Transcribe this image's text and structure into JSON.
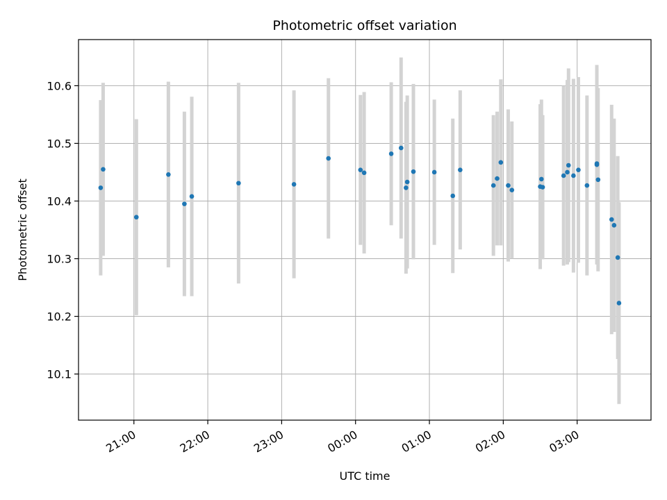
{
  "chart_data": {
    "type": "scatter",
    "title": "Photometric offset variation",
    "xlabel": "UTC time",
    "ylabel": "Photometric offset",
    "x_unit": "UTC",
    "xlim": [
      "20:15",
      "04:00"
    ],
    "ylim": [
      10.02,
      10.68
    ],
    "x_ticks": [
      "21:00",
      "22:00",
      "23:00",
      "00:00",
      "01:00",
      "02:00",
      "03:00"
    ],
    "y_ticks": [
      "10.1",
      "10.2",
      "10.3",
      "10.4",
      "10.5",
      "10.6"
    ],
    "grid": true,
    "colors": {
      "point": "#1f77b4",
      "errorbar": "#d3d3d3",
      "grid": "#b0b0b0"
    },
    "points": [
      {
        "x": "20:33",
        "y": 10.423,
        "yerr": 0.152
      },
      {
        "x": "20:35",
        "y": 10.455,
        "yerr": 0.15
      },
      {
        "x": "21:02",
        "y": 10.372,
        "yerr": 0.17
      },
      {
        "x": "21:28",
        "y": 10.446,
        "yerr": 0.161
      },
      {
        "x": "21:41",
        "y": 10.395,
        "yerr": 0.16
      },
      {
        "x": "21:47",
        "y": 10.408,
        "yerr": 0.173
      },
      {
        "x": "22:25",
        "y": 10.431,
        "yerr": 0.174
      },
      {
        "x": "23:10",
        "y": 10.429,
        "yerr": 0.163
      },
      {
        "x": "23:38",
        "y": 10.474,
        "yerr": 0.139
      },
      {
        "x": "00:04",
        "y": 10.454,
        "yerr": 0.13
      },
      {
        "x": "00:07",
        "y": 10.449,
        "yerr": 0.14
      },
      {
        "x": "00:29",
        "y": 10.482,
        "yerr": 0.124
      },
      {
        "x": "00:37",
        "y": 10.492,
        "yerr": 0.157
      },
      {
        "x": "00:41",
        "y": 10.423,
        "yerr": 0.149
      },
      {
        "x": "00:42",
        "y": 10.433,
        "yerr": 0.15
      },
      {
        "x": "00:47",
        "y": 10.451,
        "yerr": 0.152
      },
      {
        "x": "01:04",
        "y": 10.45,
        "yerr": 0.126
      },
      {
        "x": "01:19",
        "y": 10.409,
        "yerr": 0.134
      },
      {
        "x": "01:25",
        "y": 10.454,
        "yerr": 0.138
      },
      {
        "x": "01:52",
        "y": 10.427,
        "yerr": 0.122
      },
      {
        "x": "01:55",
        "y": 10.439,
        "yerr": 0.116
      },
      {
        "x": "01:58",
        "y": 10.467,
        "yerr": 0.144
      },
      {
        "x": "02:04",
        "y": 10.427,
        "yerr": 0.132
      },
      {
        "x": "02:07",
        "y": 10.419,
        "yerr": 0.119
      },
      {
        "x": "02:30",
        "y": 10.425,
        "yerr": 0.143
      },
      {
        "x": "02:31",
        "y": 10.438,
        "yerr": 0.138
      },
      {
        "x": "02:32",
        "y": 10.424,
        "yerr": 0.125
      },
      {
        "x": "02:49",
        "y": 10.444,
        "yerr": 0.156
      },
      {
        "x": "02:52",
        "y": 10.45,
        "yerr": 0.16
      },
      {
        "x": "02:53",
        "y": 10.462,
        "yerr": 0.168
      },
      {
        "x": "02:57",
        "y": 10.444,
        "yerr": 0.168
      },
      {
        "x": "03:01",
        "y": 10.454,
        "yerr": 0.161
      },
      {
        "x": "03:08",
        "y": 10.427,
        "yerr": 0.156
      },
      {
        "x": "03:16",
        "y": 10.463,
        "yerr": 0.173
      },
      {
        "x": "03:16",
        "y": 10.465,
        "yerr": 0.163
      },
      {
        "x": "03:17",
        "y": 10.437,
        "yerr": 0.159
      },
      {
        "x": "03:28",
        "y": 10.368,
        "yerr": 0.199
      },
      {
        "x": "03:30",
        "y": 10.358,
        "yerr": 0.185
      },
      {
        "x": "03:33",
        "y": 10.302,
        "yerr": 0.176
      },
      {
        "x": "03:34",
        "y": 10.223,
        "yerr": 0.175
      }
    ]
  }
}
